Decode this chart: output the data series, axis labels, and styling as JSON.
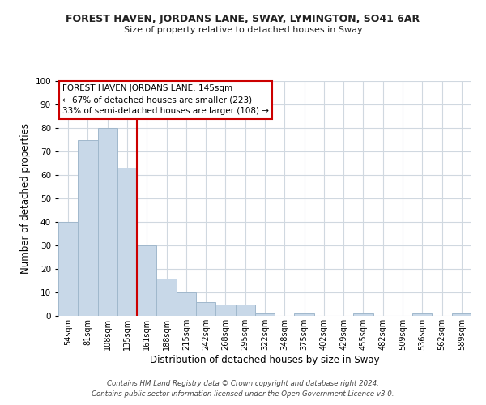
{
  "title": "FOREST HAVEN, JORDANS LANE, SWAY, LYMINGTON, SO41 6AR",
  "subtitle": "Size of property relative to detached houses in Sway",
  "xlabel": "Distribution of detached houses by size in Sway",
  "ylabel": "Number of detached properties",
  "bar_color": "#c8d8e8",
  "bar_edge_color": "#a0b8cc",
  "bin_labels": [
    "54sqm",
    "81sqm",
    "108sqm",
    "135sqm",
    "161sqm",
    "188sqm",
    "215sqm",
    "242sqm",
    "268sqm",
    "295sqm",
    "322sqm",
    "348sqm",
    "375sqm",
    "402sqm",
    "429sqm",
    "455sqm",
    "482sqm",
    "509sqm",
    "536sqm",
    "562sqm",
    "589sqm"
  ],
  "bar_heights": [
    40,
    75,
    80,
    63,
    30,
    16,
    10,
    6,
    5,
    5,
    1,
    0,
    1,
    0,
    0,
    1,
    0,
    0,
    1,
    0,
    1
  ],
  "ylim": [
    0,
    100
  ],
  "yticks": [
    0,
    10,
    20,
    30,
    40,
    50,
    60,
    70,
    80,
    90,
    100
  ],
  "vline_x": 3.5,
  "vline_color": "#cc0000",
  "annotation_line1": "FOREST HAVEN JORDANS LANE: 145sqm",
  "annotation_line2": "← 67% of detached houses are smaller (223)",
  "annotation_line3": "33% of semi-detached houses are larger (108) →",
  "footer1": "Contains HM Land Registry data © Crown copyright and database right 2024.",
  "footer2": "Contains public sector information licensed under the Open Government Licence v3.0.",
  "background_color": "#ffffff",
  "grid_color": "#d0d8e0"
}
